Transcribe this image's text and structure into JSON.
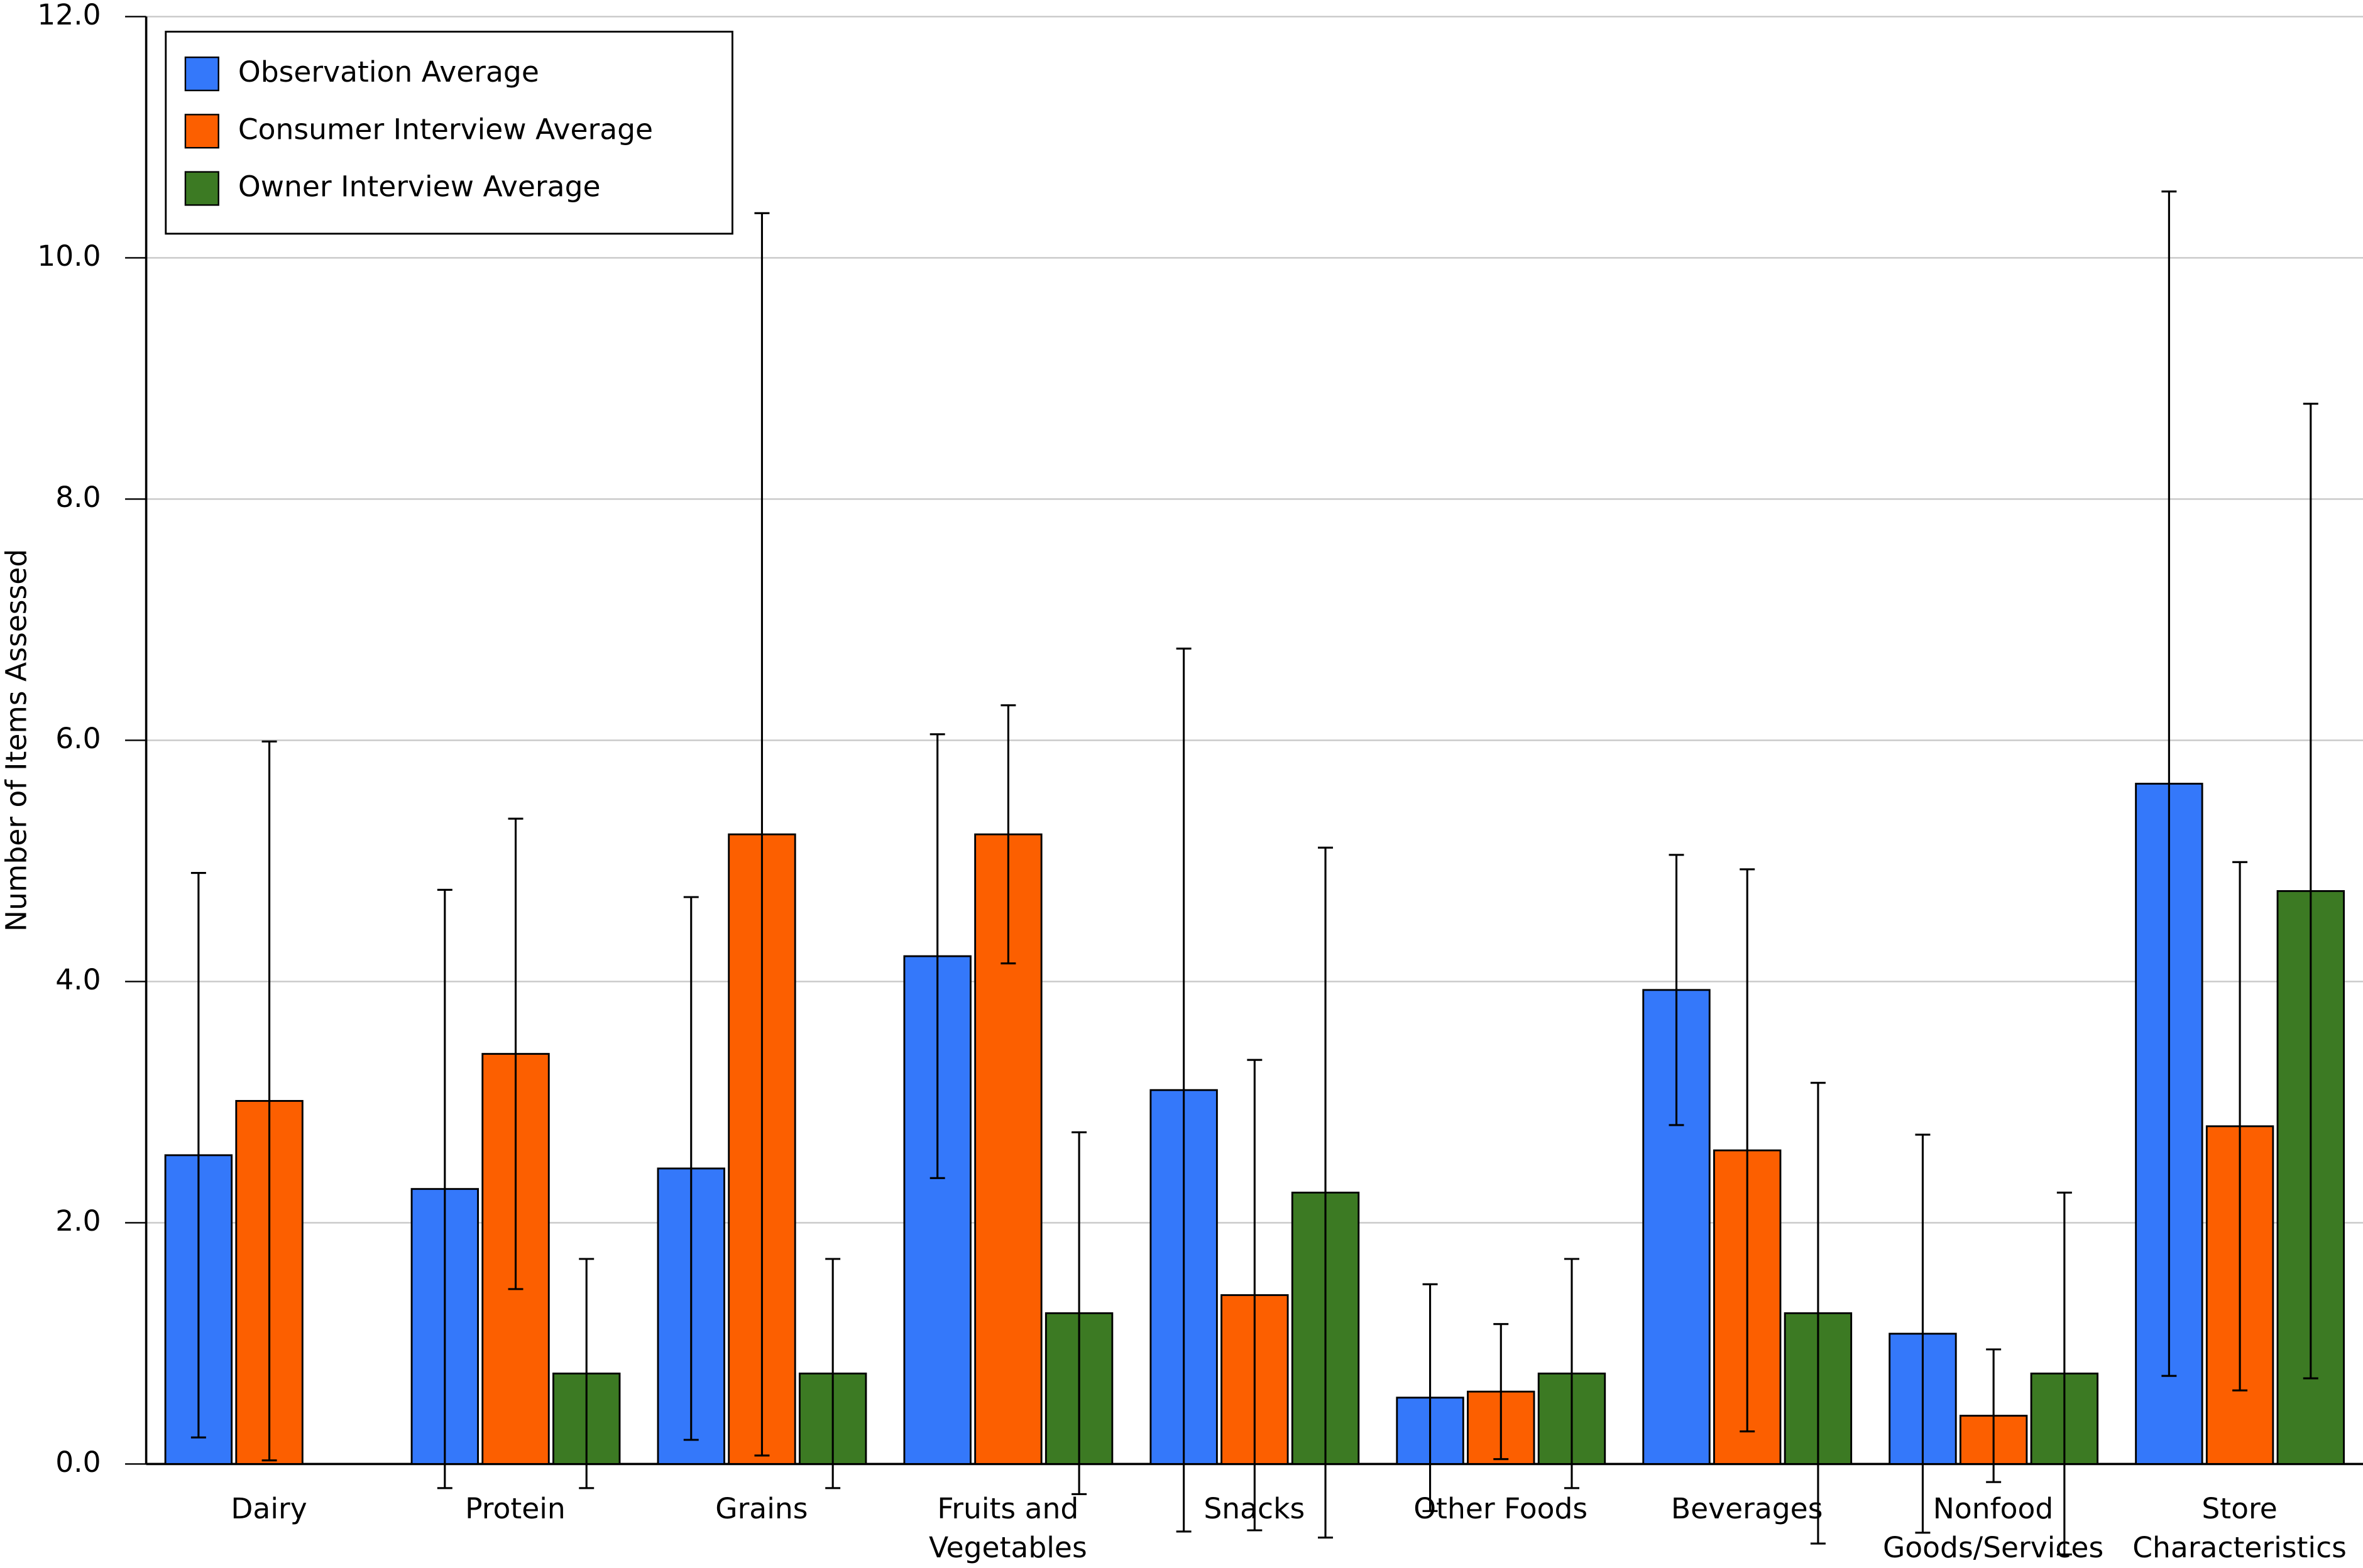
{
  "chart_data": {
    "type": "bar",
    "y_label": "Number of Items Assessed",
    "categories": [
      "Dairy",
      "Protein",
      "Grains",
      "Fruits and Vegetables",
      "Snacks",
      "Other Foods",
      "Beverages",
      "Nonfood Goods/Services",
      "Store Characteristics"
    ],
    "series": [
      {
        "name": "Observation Average",
        "color": "#3478fa",
        "values": [
          2.56,
          2.28,
          2.45,
          4.21,
          3.1,
          0.55,
          3.93,
          1.08,
          5.64
        ],
        "errors": [
          2.34,
          2.48,
          2.25,
          1.84,
          3.66,
          0.94,
          1.12,
          1.65,
          4.91
        ]
      },
      {
        "name": "Consumer Interview Average",
        "color": "#fc5f00",
        "values": [
          3.01,
          3.4,
          5.22,
          5.22,
          1.4,
          0.6,
          2.6,
          0.4,
          2.8
        ],
        "errors": [
          2.98,
          1.95,
          5.15,
          1.07,
          1.95,
          0.56,
          2.33,
          0.55,
          2.19
        ]
      },
      {
        "name": "Owner Interview Average",
        "color": "#3c7a23",
        "values": [
          null,
          0.75,
          0.75,
          1.25,
          2.25,
          0.75,
          1.25,
          0.75,
          4.75
        ],
        "errors": [
          null,
          0.95,
          0.95,
          1.5,
          2.86,
          0.95,
          1.91,
          1.5,
          4.04
        ]
      }
    ],
    "ylim": [
      0,
      12
    ],
    "yticks": [
      {
        "value": 0,
        "label": "0.0"
      },
      {
        "value": 2,
        "label": "2.0"
      },
      {
        "value": 4,
        "label": "4.0"
      },
      {
        "value": 6,
        "label": "6.0"
      },
      {
        "value": 8,
        "label": "8.0"
      },
      {
        "value": 10,
        "label": "10.0"
      },
      {
        "value": 12,
        "label": "12.0"
      }
    ],
    "grid": true,
    "legend": "upper left"
  }
}
